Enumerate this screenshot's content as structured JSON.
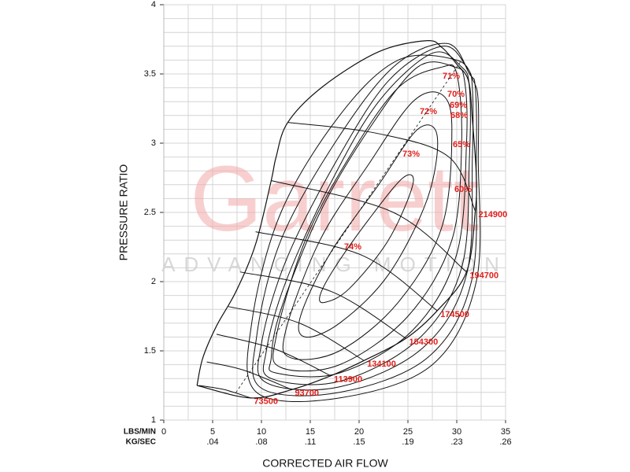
{
  "chart_data": {
    "type": "line",
    "y_label": "PRESSURE RATIO",
    "x_label": "CORRECTED AIR FLOW",
    "x_unit_label": "LBS/MIN",
    "x2_unit_label": "KG/SEC",
    "watermark": "Garrett",
    "watermark_sub": "ADVANCING MOTION",
    "xlim": [
      0,
      35
    ],
    "ylim": [
      1,
      4
    ],
    "xticks": [
      0,
      5,
      10,
      15,
      20,
      25,
      30,
      35
    ],
    "yticks": [
      1,
      1.5,
      2,
      2.5,
      3,
      3.5,
      4
    ],
    "x2lim": [
      0,
      0.2646
    ],
    "x2ticks": [
      {
        "value": 0.0378,
        "label": ".04"
      },
      {
        "value": 0.0756,
        "label": ".08"
      },
      {
        "value": 0.1134,
        "label": ".11"
      },
      {
        "value": 0.1512,
        "label": ".15"
      },
      {
        "value": 0.189,
        "label": ".19"
      },
      {
        "value": 0.2268,
        "label": ".23"
      },
      {
        "value": 0.2646,
        "label": ".26"
      }
    ],
    "grid": true,
    "xminor": 2.5,
    "yminor": 0.1,
    "label_color": "#e0201b",
    "series": [
      {
        "name": "73500",
        "color": "#111111",
        "x": [
          3.6,
          6.2,
          8.9
        ],
        "y": [
          1.25,
          1.22,
          1.16
        ]
      },
      {
        "name": "93700",
        "color": "#111111",
        "x": [
          4.4,
          8.2,
          13.1
        ],
        "y": [
          1.42,
          1.36,
          1.22
        ]
      },
      {
        "name": "113900",
        "color": "#111111",
        "x": [
          5.4,
          11.5,
          17.1
        ],
        "y": [
          1.62,
          1.51,
          1.32
        ]
      },
      {
        "name": "134100",
        "color": "#111111",
        "x": [
          6.6,
          13.9,
          20.5
        ],
        "y": [
          1.82,
          1.7,
          1.43
        ]
      },
      {
        "name": "154300",
        "color": "#111111",
        "x": [
          7.8,
          17.1,
          24.8
        ],
        "y": [
          2.07,
          1.93,
          1.59
        ]
      },
      {
        "name": "174500",
        "color": "#111111",
        "x": [
          9.4,
          20.3,
          28.0
        ],
        "y": [
          2.36,
          2.19,
          1.79
        ]
      },
      {
        "name": "194700",
        "color": "#111111",
        "x": [
          11.0,
          23.5,
          31.0
        ],
        "y": [
          2.73,
          2.5,
          2.07
        ]
      },
      {
        "name": "214900",
        "color": "#111111",
        "x": [
          12.7,
          21.9,
          29.2,
          31.9
        ],
        "y": [
          3.15,
          3.07,
          2.9,
          2.51
        ]
      }
    ],
    "efficiency": {
      "values": [
        74,
        73,
        72,
        71,
        70,
        69,
        68,
        65,
        60
      ],
      "value_labels": [
        "74%",
        "73%",
        "72%",
        "71%",
        "70%",
        "69%",
        "68%",
        "65%",
        "60%"
      ],
      "contours": [
        {
          "x": [
            16.5,
            19,
            23,
            25.5,
            24.5,
            21,
            17.5,
            16
          ],
          "y": [
            1.85,
            1.95,
            2.3,
            2.7,
            2.75,
            2.45,
            2.1,
            1.9
          ]
        },
        {
          "x": [
            14.5,
            18,
            23,
            27,
            28,
            26,
            22,
            17,
            14
          ],
          "y": [
            1.6,
            1.7,
            2.05,
            2.6,
            3.05,
            3.1,
            2.7,
            2.2,
            1.75
          ]
        },
        {
          "x": [
            13,
            18,
            24,
            28.5,
            29.5,
            28.5,
            25.5,
            21,
            16,
            12.5
          ],
          "y": [
            1.45,
            1.5,
            1.85,
            2.4,
            3.1,
            3.35,
            3.3,
            2.85,
            2.3,
            1.65
          ]
        },
        {
          "x": [
            12,
            18,
            25,
            29.5,
            30.5,
            30,
            28.5,
            24,
            19,
            14.5,
            11.5
          ],
          "y": [
            1.38,
            1.4,
            1.75,
            2.3,
            3.0,
            3.5,
            3.55,
            3.4,
            2.9,
            2.3,
            1.6
          ]
        },
        {
          "x": [
            11.5,
            18,
            25.5,
            30,
            31,
            30.8,
            29.8,
            26,
            21,
            16,
            12,
            11
          ],
          "y": [
            1.34,
            1.34,
            1.65,
            2.2,
            3.0,
            3.45,
            3.55,
            3.55,
            3.1,
            2.5,
            1.8,
            1.45
          ]
        },
        {
          "x": [
            11,
            18,
            26,
            30.5,
            31.3,
            31.3,
            30.5,
            27.5,
            22,
            17,
            12.5,
            10.5
          ],
          "y": [
            1.3,
            1.28,
            1.58,
            2.1,
            2.9,
            3.4,
            3.55,
            3.65,
            3.3,
            2.7,
            2.0,
            1.5
          ]
        },
        {
          "x": [
            10.5,
            18,
            26.5,
            31,
            31.6,
            31.6,
            31,
            28.5,
            23,
            17.5,
            12.5,
            10
          ],
          "y": [
            1.27,
            1.24,
            1.52,
            2.05,
            2.9,
            3.4,
            3.55,
            3.7,
            3.45,
            2.85,
            2.15,
            1.55
          ]
        },
        {
          "x": [
            10,
            18,
            27,
            31.5,
            32,
            31.9,
            31.3,
            29,
            23.5,
            17.5,
            12,
            9.5
          ],
          "y": [
            1.23,
            1.2,
            1.45,
            2.0,
            2.9,
            3.4,
            3.5,
            3.72,
            3.55,
            3.0,
            2.3,
            1.6
          ]
        },
        {
          "x": [
            9.5,
            18,
            27.5,
            32,
            32.2,
            32.2,
            31.7,
            30,
            24,
            18,
            12,
            9
          ],
          "y": [
            1.2,
            1.16,
            1.4,
            2.0,
            2.9,
            3.3,
            3.45,
            3.6,
            3.6,
            3.2,
            2.5,
            1.7
          ]
        }
      ]
    },
    "outline": {
      "x": [
        3.4,
        4.0,
        5.4,
        7.4,
        9.4,
        11.0,
        11.5,
        12.7,
        16.3,
        22.0,
        26.9,
        28.5,
        30.0,
        31.2,
        31.6,
        32.0,
        31.9,
        31.0,
        28.0,
        24.8,
        20.5,
        17.1,
        13.1,
        8.9,
        3.4
      ],
      "y": [
        1.25,
        1.45,
        1.68,
        1.93,
        2.27,
        2.73,
        2.9,
        3.15,
        3.41,
        3.66,
        3.74,
        3.69,
        3.57,
        3.45,
        3.17,
        2.77,
        2.51,
        2.07,
        1.79,
        1.59,
        1.43,
        1.32,
        1.22,
        1.16,
        1.25
      ]
    },
    "peak_line": {
      "x": [
        7.4,
        30.5
      ],
      "y": [
        1.2,
        3.6
      ]
    }
  }
}
